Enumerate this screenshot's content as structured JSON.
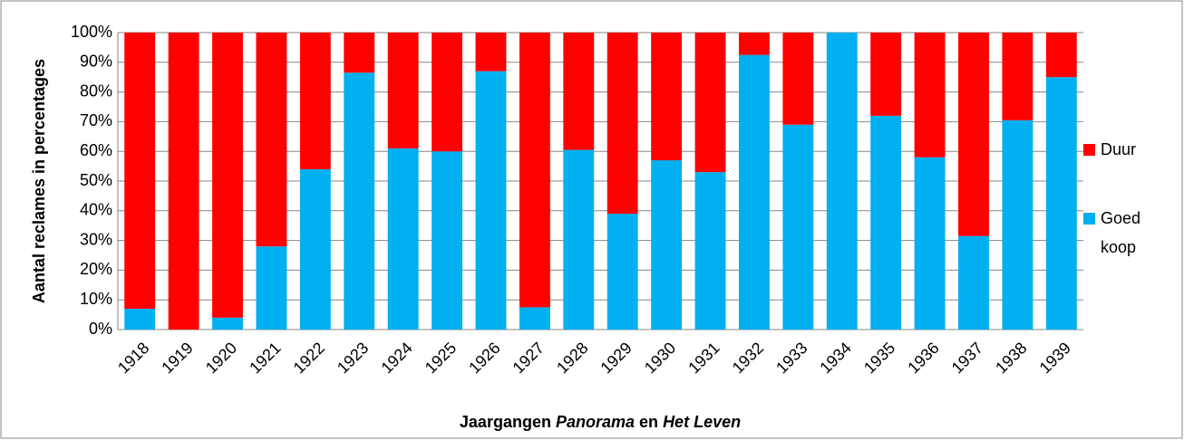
{
  "chart_data": {
    "type": "stacked_bar",
    "ylabel": "Aantal reclames in percentages",
    "xlabel": [
      "Jaargangen",
      "Panorama",
      "en",
      "Het Leven"
    ],
    "categories": [
      "1918",
      "1919",
      "1920",
      "1921",
      "1922",
      "1923",
      "1924",
      "1925",
      "1926",
      "1927",
      "1928",
      "1929",
      "1930",
      "1931",
      "1932",
      "1933",
      "1934",
      "1935",
      "1936",
      "1937",
      "1938",
      "1939"
    ],
    "series": [
      {
        "name": "Goed koop",
        "color": "#00b0f0",
        "values": [
          7,
          0,
          4,
          28,
          54,
          86.5,
          61,
          60,
          87,
          7.5,
          60.5,
          39,
          57,
          53,
          92.5,
          69,
          100,
          72,
          58,
          31.5,
          70.5,
          85
        ]
      },
      {
        "name": "Duur",
        "color": "#ff0000",
        "values": [
          93,
          100,
          96,
          72,
          46,
          13.5,
          39,
          40,
          13,
          92.5,
          39.5,
          61,
          43,
          47,
          7.5,
          31,
          0,
          28,
          42,
          68.5,
          29.5,
          15
        ]
      }
    ],
    "ylim": [
      0,
      100
    ],
    "yticks": [
      {
        "value": 0,
        "label": "0%"
      },
      {
        "value": 10,
        "label": "10%"
      },
      {
        "value": 20,
        "label": "20%"
      },
      {
        "value": 30,
        "label": "30%"
      },
      {
        "value": 40,
        "label": "40%"
      },
      {
        "value": 50,
        "label": "50%"
      },
      {
        "value": 60,
        "label": "60%"
      },
      {
        "value": 70,
        "label": "70%"
      },
      {
        "value": 80,
        "label": "80%"
      },
      {
        "value": 90,
        "label": "90%"
      },
      {
        "value": 100,
        "label": "100%"
      }
    ],
    "grid": true,
    "legend": "right"
  }
}
